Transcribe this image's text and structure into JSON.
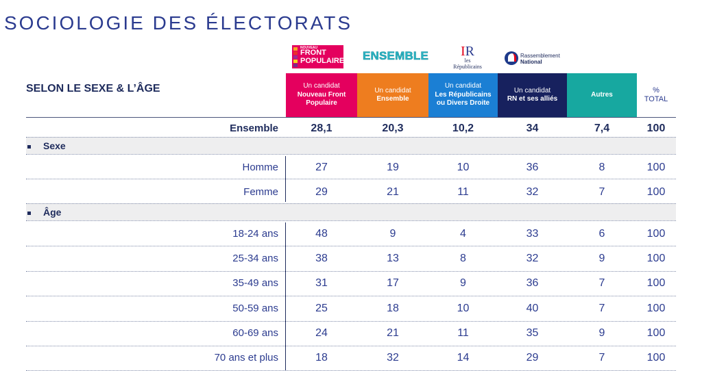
{
  "title": "SOCIOLOGIE DES ÉLECTORATS",
  "subtitle": "SELON LE SEXE & L’ÂGE",
  "logos": {
    "nfp": {
      "line1": "NOUVEAU",
      "line2": "FRONT",
      "line3": "POPULAIRE"
    },
    "ensemble": "ENSEMBLE",
    "lr": {
      "mark": "IR",
      "line1": "les",
      "line2": "Républicains"
    },
    "rn": {
      "line1": "Rassemblement",
      "line2": "National"
    }
  },
  "colors": {
    "nfp": "#e4005e",
    "ensemble": "#ee7d1f",
    "lr": "#1b7fd4",
    "rn": "#17215e",
    "autres": "#17a8a0"
  },
  "columns": [
    {
      "pre": "Un candidat",
      "name": "Nouveau Front Populaire"
    },
    {
      "pre": "Un candidat",
      "name": "Ensemble"
    },
    {
      "pre": "Un candidat",
      "name": "Les Républicains ou Divers Droite"
    },
    {
      "pre": "Un candidat",
      "name": "RN et ses alliés"
    },
    {
      "pre": "",
      "name": "Autres"
    }
  ],
  "total_header": {
    "line1": "%",
    "line2": "TOTAL"
  },
  "ensemble_row": {
    "label": "Ensemble",
    "values": [
      "28,1",
      "20,3",
      "10,2",
      "34",
      "7,4",
      "100"
    ]
  },
  "sections": [
    {
      "label": "Sexe",
      "rows": [
        {
          "label": "Homme",
          "values": [
            "27",
            "19",
            "10",
            "36",
            "8",
            "100"
          ]
        },
        {
          "label": "Femme",
          "values": [
            "29",
            "21",
            "11",
            "32",
            "7",
            "100"
          ]
        }
      ]
    },
    {
      "label": "Âge",
      "rows": [
        {
          "label": "18-24 ans",
          "values": [
            "48",
            "9",
            "4",
            "33",
            "6",
            "100"
          ]
        },
        {
          "label": "25-34 ans",
          "values": [
            "38",
            "13",
            "8",
            "32",
            "9",
            "100"
          ]
        },
        {
          "label": "35-49 ans",
          "values": [
            "31",
            "17",
            "9",
            "36",
            "7",
            "100"
          ]
        },
        {
          "label": "50-59 ans",
          "values": [
            "25",
            "18",
            "10",
            "40",
            "7",
            "100"
          ]
        },
        {
          "label": "60-69 ans",
          "values": [
            "24",
            "21",
            "11",
            "35",
            "9",
            "100"
          ]
        },
        {
          "label": "70 ans et plus",
          "values": [
            "18",
            "32",
            "14",
            "29",
            "7",
            "100"
          ]
        }
      ]
    }
  ]
}
